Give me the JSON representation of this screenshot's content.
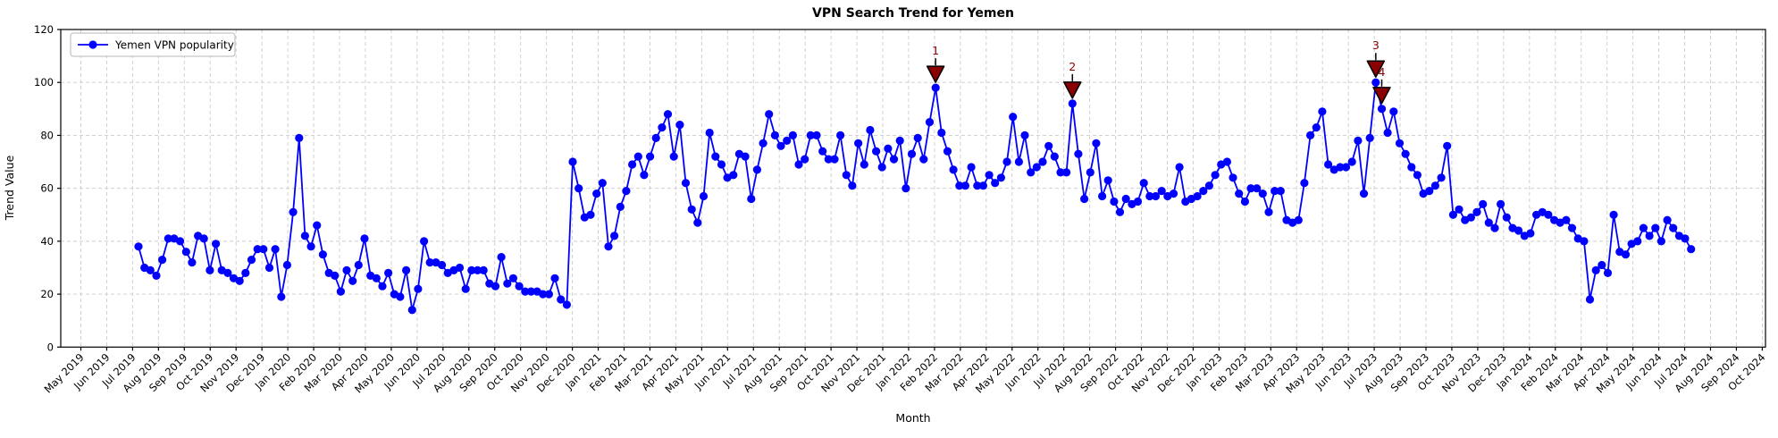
{
  "chart": {
    "title": "VPN Search Trend for Yemen",
    "xlabel": "Month",
    "ylabel": "Trend Value",
    "legend": {
      "label": "Yemen VPN popularity",
      "position": "upper-left"
    },
    "colors": {
      "line": "#0000FF",
      "marker": "#0000FF",
      "annotation": "#8B0000",
      "annotation_edge": "#000000",
      "grid": "#cccccc",
      "spine": "#000000",
      "background": "#ffffff",
      "legend_border": "#b7b7b7"
    }
  },
  "chart_data": {
    "type": "line",
    "title": "VPN Search Trend for Yemen",
    "xlabel": "Month",
    "ylabel": "Trend Value",
    "ylim": [
      0,
      120
    ],
    "y_ticks": [
      0,
      20,
      40,
      60,
      80,
      100,
      120
    ],
    "grid": "dashed",
    "legend_position": "upper left",
    "x_ticks": [
      "May 2019",
      "Jun 2019",
      "Jul 2019",
      "Aug 2019",
      "Sep 2019",
      "Oct 2019",
      "Nov 2019",
      "Dec 2019",
      "Jan 2020",
      "Feb 2020",
      "Mar 2020",
      "Apr 2020",
      "May 2020",
      "Jun 2020",
      "Jul 2020",
      "Aug 2020",
      "Sep 2020",
      "Oct 2020",
      "Nov 2020",
      "Dec 2020",
      "Jan 2021",
      "Feb 2021",
      "Mar 2021",
      "Apr 2021",
      "May 2021",
      "Jun 2021",
      "Jul 2021",
      "Aug 2021",
      "Sep 2021",
      "Oct 2021",
      "Nov 2021",
      "Dec 2021",
      "Jan 2022",
      "Feb 2022",
      "Mar 2022",
      "Apr 2022",
      "May 2022",
      "Jun 2022",
      "Jul 2022",
      "Aug 2022",
      "Sep 2022",
      "Oct 2022",
      "Nov 2022",
      "Dec 2022",
      "Jan 2023",
      "Feb 2023",
      "Mar 2023",
      "Apr 2023",
      "May 2023",
      "Jun 2023",
      "Jul 2023",
      "Aug 2023",
      "Sep 2023",
      "Oct 2023",
      "Nov 2023",
      "Dec 2023",
      "Jan 2024",
      "Feb 2024",
      "Mar 2024",
      "Apr 2024",
      "May 2024",
      "Jun 2024",
      "Jul 2024",
      "Aug 2024",
      "Sep 2024",
      "Oct 2024"
    ],
    "series": [
      {
        "name": "Yemen VPN popularity",
        "start_date": "2019-07-07",
        "frequency_days": 7,
        "values": [
          38,
          30,
          29,
          27,
          33,
          41,
          41,
          40,
          36,
          32,
          42,
          41,
          29,
          39,
          29,
          28,
          26,
          25,
          28,
          33,
          37,
          37,
          30,
          37,
          19,
          31,
          51,
          79,
          42,
          38,
          46,
          35,
          28,
          27,
          21,
          29,
          25,
          31,
          41,
          27,
          26,
          23,
          28,
          20,
          19,
          29,
          14,
          22,
          40,
          32,
          32,
          31,
          28,
          29,
          30,
          22,
          29,
          29,
          29,
          24,
          23,
          34,
          24,
          26,
          23,
          21,
          21,
          21,
          20,
          20,
          26,
          18,
          16,
          70,
          60,
          49,
          50,
          58,
          62,
          38,
          42,
          53,
          59,
          69,
          72,
          65,
          72,
          79,
          83,
          88,
          72,
          84,
          62,
          52,
          47,
          57,
          81,
          72,
          69,
          64,
          65,
          73,
          72,
          56,
          67,
          77,
          88,
          80,
          76,
          78,
          80,
          69,
          71,
          80,
          80,
          74,
          71,
          71,
          80,
          65,
          61,
          77,
          69,
          82,
          74,
          68,
          75,
          71,
          78,
          60,
          73,
          79,
          71,
          85,
          98,
          81,
          74,
          67,
          61,
          61,
          68,
          61,
          61,
          65,
          62,
          64,
          70,
          87,
          70,
          80,
          66,
          68,
          70,
          76,
          72,
          66,
          66,
          92,
          73,
          56,
          66,
          77,
          57,
          63,
          55,
          51,
          56,
          54,
          55,
          62,
          57,
          57,
          59,
          57,
          58,
          68,
          55,
          56,
          57,
          59,
          61,
          65,
          69,
          70,
          64,
          58,
          55,
          60,
          60,
          58,
          51,
          59,
          59,
          48,
          47,
          48,
          62,
          80,
          83,
          89,
          69,
          67,
          68,
          68,
          70,
          78,
          58,
          79,
          100,
          90,
          81,
          89,
          77,
          73,
          68,
          65,
          58,
          59,
          61,
          64,
          76,
          50,
          52,
          48,
          49,
          51,
          54,
          47,
          45,
          54,
          49,
          45,
          44,
          42,
          43,
          50,
          51,
          50,
          48,
          47,
          48,
          45,
          41,
          40,
          18,
          29,
          31,
          28,
          50,
          36,
          35,
          39,
          40,
          45,
          42,
          45,
          40,
          48,
          45,
          42,
          41,
          37
        ]
      }
    ],
    "annotations": [
      {
        "label": "1",
        "point_index": 134,
        "date": "2022-01-30",
        "value": 98
      },
      {
        "label": "2",
        "point_index": 157,
        "date": "2022-07-10",
        "value": 92
      },
      {
        "label": "3",
        "point_index": 208,
        "date": "2023-07-02",
        "value": 100
      },
      {
        "label": "4",
        "point_index": 209,
        "date": "2023-07-09",
        "value": 90
      }
    ]
  }
}
